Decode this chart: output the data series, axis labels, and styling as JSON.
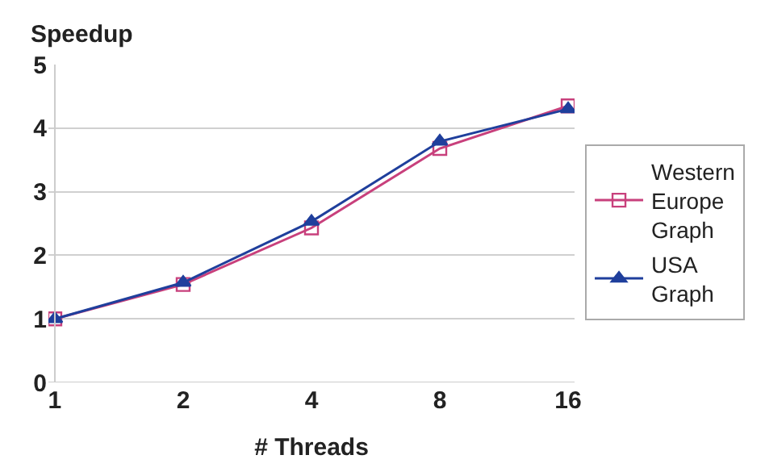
{
  "chart_data": {
    "type": "line",
    "ylabel": "Speedup",
    "xlabel": "# Threads",
    "categories": [
      "1",
      "2",
      "4",
      "8",
      "16"
    ],
    "series": [
      {
        "name": "Western Europe Graph",
        "color": "#c8407c",
        "marker": "square",
        "values": [
          1.0,
          1.54,
          2.43,
          3.68,
          4.35
        ]
      },
      {
        "name": "USA Graph",
        "color": "#1f3f9c",
        "marker": "triangle",
        "values": [
          1.0,
          1.57,
          2.53,
          3.79,
          4.3
        ]
      }
    ],
    "ylim": [
      0,
      5
    ],
    "yticks": [
      0,
      1,
      2,
      3,
      4,
      5
    ],
    "grid": "y",
    "legend": "right"
  }
}
